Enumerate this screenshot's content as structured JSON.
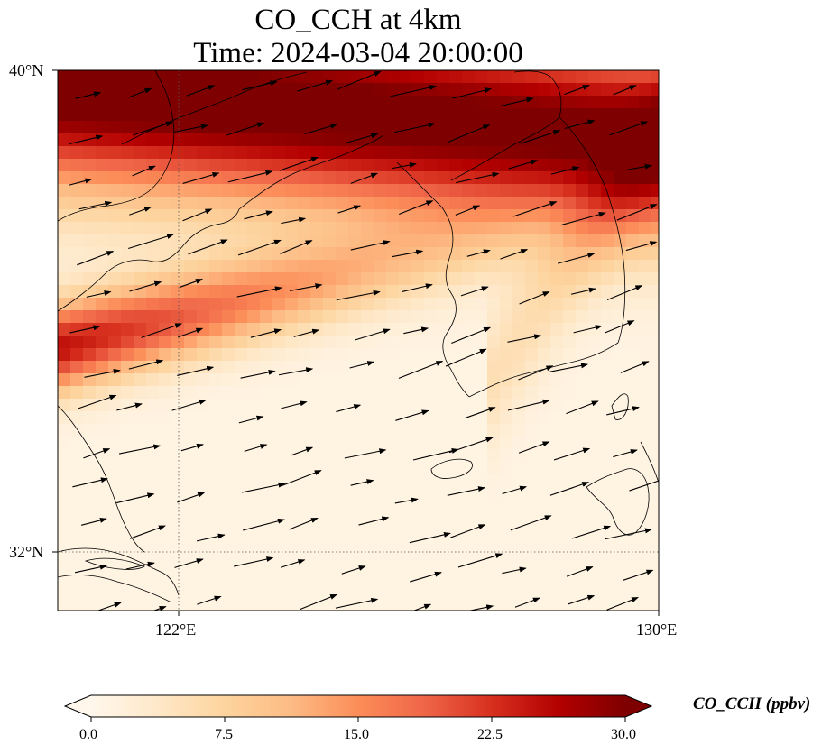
{
  "title": {
    "line1": "CO_CCH at 4km",
    "line2": "Time: 2024-03-04 20:00:00"
  },
  "axes": {
    "lat_ticks": [
      "40°N",
      "32°N"
    ],
    "lon_ticks": [
      "122°E",
      "130°E"
    ]
  },
  "colorbar": {
    "label": "CO_CCH (ppbv)",
    "ticks": [
      "0.0",
      "7.5",
      "15.0",
      "22.5",
      "30.0"
    ],
    "min": 0,
    "max": 30,
    "extend": "both",
    "colormap": [
      "#fff7ec",
      "#fee8c8",
      "#fdd49e",
      "#fdbb84",
      "#fc8d59",
      "#ef6548",
      "#d7301f",
      "#b30000",
      "#7f0000"
    ]
  },
  "map": {
    "variable": "CO_CCH",
    "level": "4km",
    "lon_range": [
      120,
      130
    ],
    "lat_range": [
      31,
      40
    ],
    "gridlines": "dotted",
    "vectors": "wind"
  }
}
